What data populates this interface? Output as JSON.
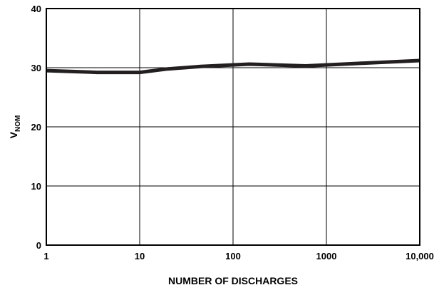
{
  "chart_data": {
    "type": "line",
    "title": "",
    "xlabel": "NUMBER OF DISCHARGES",
    "ylabel_main": "V",
    "ylabel_sub": "NOM",
    "x_scale": "log",
    "xlim": [
      1,
      10000
    ],
    "ylim": [
      0,
      40
    ],
    "x_ticks": [
      1,
      10,
      100,
      1000,
      10000
    ],
    "x_tick_labels": [
      "1",
      "10",
      "100",
      "1000",
      "10,000"
    ],
    "y_ticks": [
      0,
      10,
      20,
      30,
      40
    ],
    "y_tick_labels": [
      "0",
      "10",
      "20",
      "30",
      "40"
    ],
    "grid": true,
    "series": [
      {
        "line_color": "#231f20",
        "x": [
          1,
          3.5,
          10,
          20,
          45,
          150,
          600,
          2000,
          10000
        ],
        "y": [
          29.5,
          29.2,
          29.2,
          29.8,
          30.2,
          30.6,
          30.3,
          30.7,
          31.2
        ]
      }
    ]
  }
}
